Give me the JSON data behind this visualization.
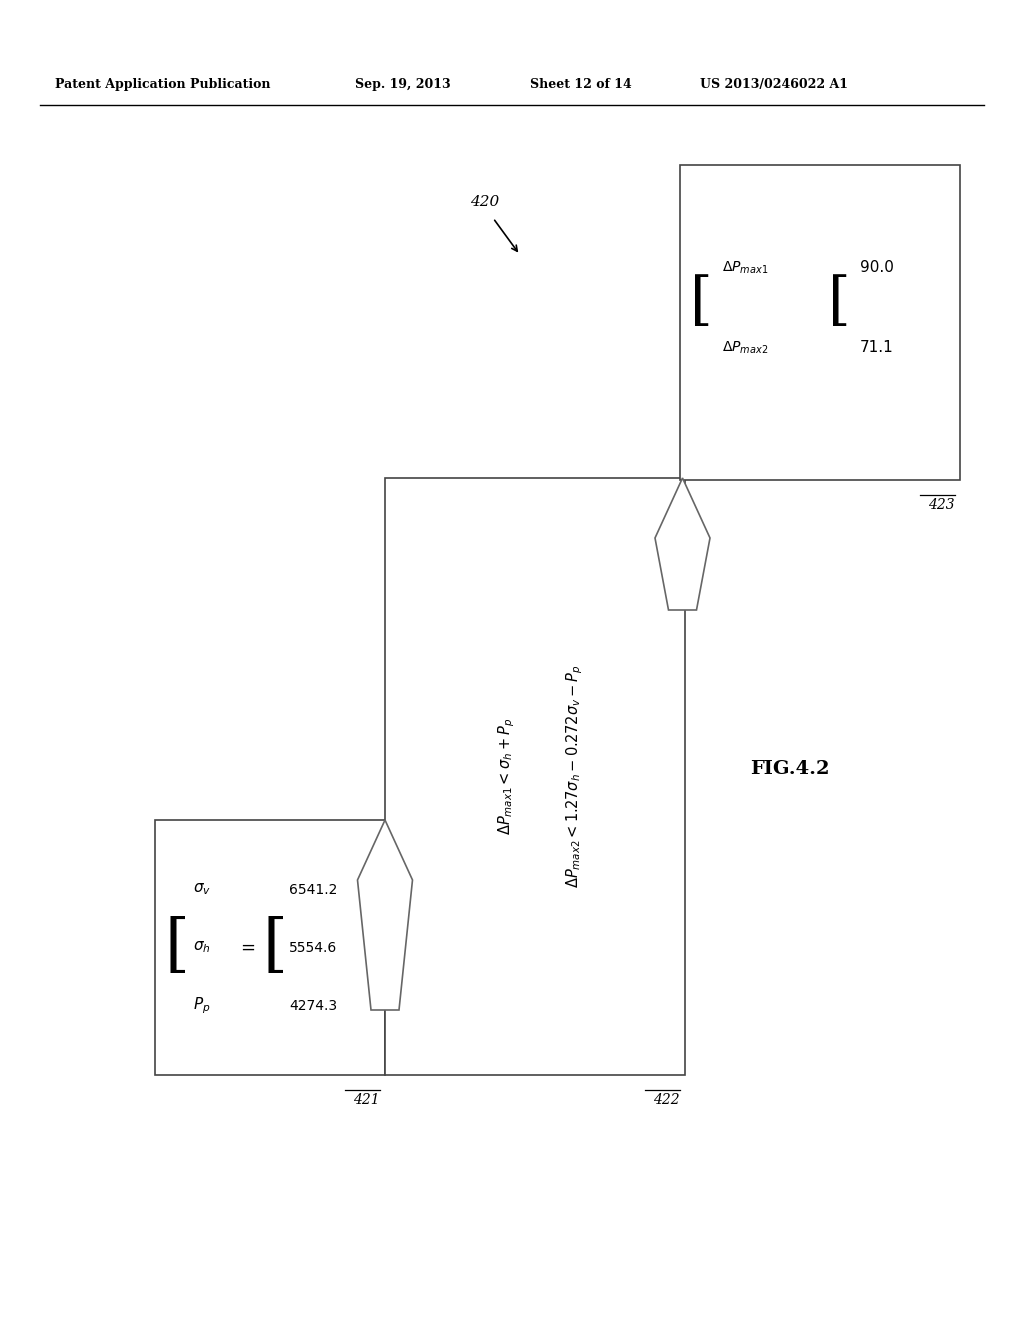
{
  "bg_color": "#ffffff",
  "header_text": "Patent Application Publication",
  "header_date": "Sep. 19, 2013",
  "header_sheet": "Sheet 12 of 14",
  "header_patent": "US 2013/0246022 A1",
  "figure_label": "FIG.4.2",
  "diagram_label": "420",
  "box1_label": "421",
  "box2_label": "422",
  "box3_label": "423",
  "box3_val1": "90.0",
  "box3_val2": "71.1",
  "line_color": "#555555",
  "arrow_color": "#888888",
  "text_color": "#000000"
}
